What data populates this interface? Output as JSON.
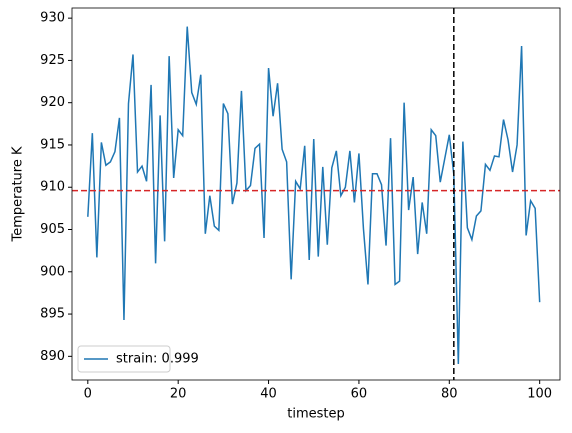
{
  "chart_data": {
    "type": "line",
    "xlabel": "timestep",
    "ylabel": "Temperature K",
    "x": [
      0,
      1,
      2,
      3,
      4,
      5,
      6,
      7,
      8,
      9,
      10,
      11,
      12,
      13,
      14,
      15,
      16,
      17,
      18,
      19,
      20,
      21,
      22,
      23,
      24,
      25,
      26,
      27,
      28,
      29,
      30,
      31,
      32,
      33,
      34,
      35,
      36,
      37,
      38,
      39,
      40,
      41,
      42,
      43,
      44,
      45,
      46,
      47,
      48,
      49,
      50,
      51,
      52,
      53,
      54,
      55,
      56,
      57,
      58,
      59,
      60,
      61,
      62,
      63,
      64,
      65,
      66,
      67,
      68,
      69,
      70,
      71,
      72,
      73,
      74,
      75,
      76,
      77,
      78,
      79,
      80,
      81,
      82,
      83,
      84,
      85,
      86,
      87,
      88,
      89,
      90,
      91,
      92,
      93,
      94,
      95,
      96,
      97,
      98,
      99,
      100
    ],
    "series": [
      {
        "name": "strain: 0.999",
        "color": "#1f77b4",
        "values": [
          906.5,
          916.4,
          901.7,
          915.3,
          912.6,
          913.0,
          914.2,
          918.2,
          894.3,
          919.9,
          925.7,
          911.8,
          912.5,
          910.7,
          922.1,
          901.0,
          918.5,
          903.6,
          925.5,
          911.1,
          916.8,
          916.1,
          929.0,
          921.2,
          919.8,
          923.3,
          904.5,
          909.0,
          905.4,
          904.9,
          919.9,
          918.7,
          908.0,
          910.5,
          921.4,
          909.6,
          910.2,
          914.6,
          915.1,
          904.0,
          924.1,
          918.4,
          922.3,
          914.5,
          913.0,
          899.1,
          910.7,
          909.8,
          914.9,
          901.4,
          915.7,
          901.8,
          912.4,
          903.2,
          912.3,
          914.3,
          909.0,
          910.0,
          914.3,
          908.2,
          914.0,
          905.1,
          898.5,
          911.6,
          911.6,
          910.3,
          903.1,
          915.8,
          898.5,
          898.9,
          920.0,
          907.3,
          911.2,
          902.1,
          908.2,
          904.5,
          916.8,
          916.1,
          910.6,
          913.4,
          916.2,
          911.5,
          889.1,
          915.4,
          905.2,
          903.8,
          906.6,
          907.2,
          912.7,
          912.0,
          913.7,
          913.6,
          918.0,
          915.6,
          911.8,
          915.0,
          926.7,
          904.3,
          908.4,
          907.5,
          896.4
        ]
      }
    ],
    "hlines": [
      {
        "value": 909.6,
        "color": "#d62728"
      }
    ],
    "vlines": [
      {
        "value": 81,
        "color": "#000000"
      }
    ],
    "xlim": [
      -3.5,
      104.5
    ],
    "ylim": [
      887.2,
      931.2
    ],
    "xticks": [
      0,
      20,
      40,
      60,
      80,
      100
    ],
    "yticks": [
      890,
      895,
      900,
      905,
      910,
      915,
      920,
      925,
      930
    ],
    "legend": "lower left"
  }
}
